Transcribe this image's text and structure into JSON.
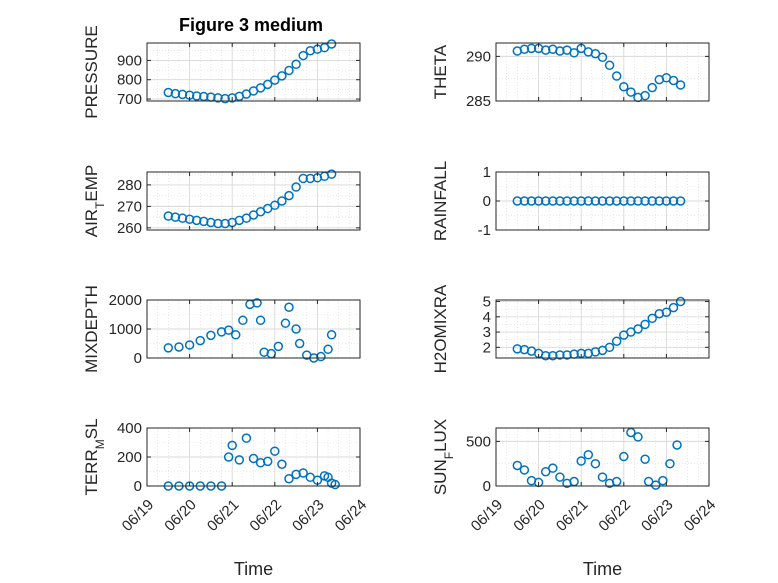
{
  "figure": {
    "title": "Figure 3 medium",
    "marker_color": "#0072BD",
    "axis_color": "#262626",
    "grid_color": "#d9d9d9"
  },
  "chart_data": [
    {
      "type": "scatter",
      "ylabel": "PRESSURE",
      "xlim": [
        "06/19",
        "06/24"
      ],
      "ylim": [
        690,
        990
      ],
      "yticks": [
        700,
        800,
        900
      ],
      "grid": true,
      "xticklabels": false,
      "points": [
        [
          "06/19 12:00",
          734
        ],
        [
          "06/19 16:00",
          728
        ],
        [
          "06/19 20:00",
          724
        ],
        [
          "06/20 00:00",
          720
        ],
        [
          "06/20 04:00",
          716
        ],
        [
          "06/20 08:00",
          713
        ],
        [
          "06/20 12:00",
          710
        ],
        [
          "06/20 16:00",
          706
        ],
        [
          "06/20 20:00",
          702
        ],
        [
          "06/21 00:00",
          706
        ],
        [
          "06/21 04:00",
          714
        ],
        [
          "06/21 08:00",
          726
        ],
        [
          "06/21 12:00",
          742
        ],
        [
          "06/21 16:00",
          758
        ],
        [
          "06/21 20:00",
          776
        ],
        [
          "06/22 00:00",
          798
        ],
        [
          "06/22 04:00",
          820
        ],
        [
          "06/22 08:00",
          848
        ],
        [
          "06/22 12:00",
          880
        ],
        [
          "06/22 16:00",
          925
        ],
        [
          "06/22 20:00",
          950
        ],
        [
          "06/23 00:00",
          958
        ],
        [
          "06/23 04:00",
          966
        ],
        [
          "06/23 08:00",
          985
        ]
      ]
    },
    {
      "type": "scatter",
      "ylabel": "THETA",
      "xlim": [
        "06/19",
        "06/24"
      ],
      "ylim": [
        285,
        291.5
      ],
      "yticks": [
        285,
        290
      ],
      "grid": true,
      "xticklabels": false,
      "points": [
        [
          "06/19 12:00",
          290.6
        ],
        [
          "06/19 16:00",
          290.8
        ],
        [
          "06/19 20:00",
          290.9
        ],
        [
          "06/20 00:00",
          290.9
        ],
        [
          "06/20 04:00",
          290.7
        ],
        [
          "06/20 08:00",
          290.8
        ],
        [
          "06/20 12:00",
          290.6
        ],
        [
          "06/20 16:00",
          290.7
        ],
        [
          "06/20 20:00",
          290.4
        ],
        [
          "06/21 00:00",
          290.9
        ],
        [
          "06/21 04:00",
          290.5
        ],
        [
          "06/21 08:00",
          290.3
        ],
        [
          "06/21 12:00",
          289.9
        ],
        [
          "06/21 16:00",
          289.0
        ],
        [
          "06/21 20:00",
          287.8
        ],
        [
          "06/22 00:00",
          286.6
        ],
        [
          "06/22 04:00",
          286.0
        ],
        [
          "06/22 08:00",
          285.4
        ],
        [
          "06/22 12:00",
          285.6
        ],
        [
          "06/22 16:00",
          286.5
        ],
        [
          "06/22 20:00",
          287.4
        ],
        [
          "06/23 00:00",
          287.6
        ],
        [
          "06/23 04:00",
          287.3
        ],
        [
          "06/23 08:00",
          286.8
        ]
      ]
    },
    {
      "type": "scatter",
      "ylabel_parts": [
        "AIR",
        "T",
        "EMP"
      ],
      "xlim": [
        "06/19",
        "06/24"
      ],
      "ylim": [
        259,
        286
      ],
      "yticks": [
        260,
        270,
        280
      ],
      "grid": true,
      "xticklabels": false,
      "points": [
        [
          "06/19 12:00",
          265.5
        ],
        [
          "06/19 16:00",
          265.0
        ],
        [
          "06/19 20:00",
          264.5
        ],
        [
          "06/20 00:00",
          264.0
        ],
        [
          "06/20 04:00",
          263.5
        ],
        [
          "06/20 08:00",
          263.0
        ],
        [
          "06/20 12:00",
          262.5
        ],
        [
          "06/20 16:00",
          262.0
        ],
        [
          "06/20 20:00",
          262.0
        ],
        [
          "06/21 00:00",
          262.5
        ],
        [
          "06/21 04:00",
          263.5
        ],
        [
          "06/21 08:00",
          264.5
        ],
        [
          "06/21 12:00",
          266.0
        ],
        [
          "06/21 16:00",
          267.5
        ],
        [
          "06/21 20:00",
          269.0
        ],
        [
          "06/22 00:00",
          270.5
        ],
        [
          "06/22 04:00",
          272.5
        ],
        [
          "06/22 08:00",
          275.0
        ],
        [
          "06/22 12:00",
          279.0
        ],
        [
          "06/22 16:00",
          283.0
        ],
        [
          "06/22 20:00",
          283.0
        ],
        [
          "06/23 00:00",
          283.3
        ],
        [
          "06/23 04:00",
          284.0
        ],
        [
          "06/23 08:00",
          285.0
        ]
      ]
    },
    {
      "type": "scatter",
      "ylabel": "RAINFALL",
      "xlim": [
        "06/19",
        "06/24"
      ],
      "ylim": [
        -1,
        1
      ],
      "yticks": [
        -1,
        0,
        1
      ],
      "grid": true,
      "xticklabels": false,
      "points": [
        [
          "06/19 12:00",
          0
        ],
        [
          "06/19 16:00",
          0
        ],
        [
          "06/19 20:00",
          0
        ],
        [
          "06/20 00:00",
          0
        ],
        [
          "06/20 04:00",
          0
        ],
        [
          "06/20 08:00",
          0
        ],
        [
          "06/20 12:00",
          0
        ],
        [
          "06/20 16:00",
          0
        ],
        [
          "06/20 20:00",
          0
        ],
        [
          "06/21 00:00",
          0
        ],
        [
          "06/21 04:00",
          0
        ],
        [
          "06/21 08:00",
          0
        ],
        [
          "06/21 12:00",
          0
        ],
        [
          "06/21 16:00",
          0
        ],
        [
          "06/21 20:00",
          0
        ],
        [
          "06/22 00:00",
          0
        ],
        [
          "06/22 04:00",
          0
        ],
        [
          "06/22 08:00",
          0
        ],
        [
          "06/22 12:00",
          0
        ],
        [
          "06/22 16:00",
          0
        ],
        [
          "06/22 20:00",
          0
        ],
        [
          "06/23 00:00",
          0
        ],
        [
          "06/23 04:00",
          0
        ],
        [
          "06/23 08:00",
          0
        ]
      ]
    },
    {
      "type": "scatter",
      "ylabel": "MIXDEPTH",
      "xlim": [
        "06/19",
        "06/24"
      ],
      "ylim": [
        0,
        2000
      ],
      "yticks": [
        0,
        1000,
        2000
      ],
      "grid": true,
      "xticklabels": false,
      "points": [
        [
          "06/19 12:00",
          350
        ],
        [
          "06/19 18:00",
          380
        ],
        [
          "06/20 00:00",
          450
        ],
        [
          "06/20 06:00",
          600
        ],
        [
          "06/20 12:00",
          780
        ],
        [
          "06/20 18:00",
          900
        ],
        [
          "06/20 22:00",
          960
        ],
        [
          "06/21 02:00",
          800
        ],
        [
          "06/21 06:00",
          1300
        ],
        [
          "06/21 10:00",
          1850
        ],
        [
          "06/21 14:00",
          1900
        ],
        [
          "06/21 16:00",
          1300
        ],
        [
          "06/21 18:00",
          200
        ],
        [
          "06/21 22:00",
          150
        ],
        [
          "06/22 02:00",
          400
        ],
        [
          "06/22 06:00",
          1200
        ],
        [
          "06/22 08:00",
          1750
        ],
        [
          "06/22 12:00",
          1000
        ],
        [
          "06/22 14:00",
          500
        ],
        [
          "06/22 18:00",
          100
        ],
        [
          "06/22 22:00",
          0
        ],
        [
          "06/23 02:00",
          50
        ],
        [
          "06/23 06:00",
          300
        ],
        [
          "06/23 08:00",
          800
        ]
      ]
    },
    {
      "type": "scatter",
      "ylabel": "H2OMIXRA",
      "xlim": [
        "06/19",
        "06/24"
      ],
      "ylim": [
        1.3,
        5.1
      ],
      "yticks": [
        2,
        3,
        4,
        5
      ],
      "grid": true,
      "xticklabels": false,
      "points": [
        [
          "06/19 12:00",
          1.9
        ],
        [
          "06/19 16:00",
          1.85
        ],
        [
          "06/19 20:00",
          1.75
        ],
        [
          "06/20 00:00",
          1.6
        ],
        [
          "06/20 04:00",
          1.45
        ],
        [
          "06/20 08:00",
          1.45
        ],
        [
          "06/20 12:00",
          1.5
        ],
        [
          "06/20 16:00",
          1.5
        ],
        [
          "06/20 20:00",
          1.55
        ],
        [
          "06/21 00:00",
          1.6
        ],
        [
          "06/21 04:00",
          1.6
        ],
        [
          "06/21 08:00",
          1.7
        ],
        [
          "06/21 12:00",
          1.8
        ],
        [
          "06/21 16:00",
          2.0
        ],
        [
          "06/21 20:00",
          2.4
        ],
        [
          "06/22 00:00",
          2.8
        ],
        [
          "06/22 04:00",
          3.0
        ],
        [
          "06/22 08:00",
          3.2
        ],
        [
          "06/22 12:00",
          3.5
        ],
        [
          "06/22 16:00",
          3.9
        ],
        [
          "06/22 20:00",
          4.2
        ],
        [
          "06/23 00:00",
          4.3
        ],
        [
          "06/23 04:00",
          4.6
        ],
        [
          "06/23 08:00",
          5.0
        ]
      ]
    },
    {
      "type": "scatter",
      "ylabel_parts": [
        "TERR",
        "M",
        "SL"
      ],
      "xlim": [
        "06/19",
        "06/24"
      ],
      "ylim": [
        0,
        400
      ],
      "yticks": [
        0,
        200,
        400
      ],
      "grid": true,
      "xticks": [
        "06/19",
        "06/20",
        "06/21",
        "06/22",
        "06/23",
        "06/24"
      ],
      "xlabel": "Time",
      "points": [
        [
          "06/19 12:00",
          0
        ],
        [
          "06/19 18:00",
          0
        ],
        [
          "06/20 00:00",
          0
        ],
        [
          "06/20 06:00",
          0
        ],
        [
          "06/20 12:00",
          0
        ],
        [
          "06/20 18:00",
          0
        ],
        [
          "06/20 22:00",
          200
        ],
        [
          "06/21 00:00",
          280
        ],
        [
          "06/21 04:00",
          180
        ],
        [
          "06/21 08:00",
          330
        ],
        [
          "06/21 12:00",
          190
        ],
        [
          "06/21 16:00",
          160
        ],
        [
          "06/21 20:00",
          170
        ],
        [
          "06/22 00:00",
          240
        ],
        [
          "06/22 04:00",
          150
        ],
        [
          "06/22 08:00",
          50
        ],
        [
          "06/22 12:00",
          80
        ],
        [
          "06/22 16:00",
          90
        ],
        [
          "06/22 20:00",
          60
        ],
        [
          "06/23 00:00",
          40
        ],
        [
          "06/23 04:00",
          70
        ],
        [
          "06/23 06:00",
          60
        ],
        [
          "06/23 08:00",
          20
        ],
        [
          "06/23 10:00",
          10
        ]
      ]
    },
    {
      "type": "scatter",
      "ylabel_parts": [
        "SUN",
        "F",
        "LUX"
      ],
      "xlim": [
        "06/19",
        "06/24"
      ],
      "ylim": [
        0,
        650
      ],
      "yticks": [
        0,
        500
      ],
      "grid": true,
      "xticks": [
        "06/19",
        "06/20",
        "06/21",
        "06/22",
        "06/23",
        "06/24"
      ],
      "xlabel": "Time",
      "points": [
        [
          "06/19 12:00",
          230
        ],
        [
          "06/19 16:00",
          180
        ],
        [
          "06/19 20:00",
          60
        ],
        [
          "06/20 00:00",
          40
        ],
        [
          "06/20 04:00",
          160
        ],
        [
          "06/20 08:00",
          200
        ],
        [
          "06/20 12:00",
          100
        ],
        [
          "06/20 16:00",
          30
        ],
        [
          "06/20 20:00",
          50
        ],
        [
          "06/21 00:00",
          280
        ],
        [
          "06/21 04:00",
          350
        ],
        [
          "06/21 08:00",
          250
        ],
        [
          "06/21 12:00",
          100
        ],
        [
          "06/21 16:00",
          30
        ],
        [
          "06/21 20:00",
          50
        ],
        [
          "06/22 00:00",
          330
        ],
        [
          "06/22 04:00",
          600
        ],
        [
          "06/22 08:00",
          550
        ],
        [
          "06/22 12:00",
          300
        ],
        [
          "06/22 14:00",
          50
        ],
        [
          "06/22 18:00",
          10
        ],
        [
          "06/22 22:00",
          60
        ],
        [
          "06/23 02:00",
          250
        ],
        [
          "06/23 06:00",
          460
        ]
      ]
    }
  ]
}
